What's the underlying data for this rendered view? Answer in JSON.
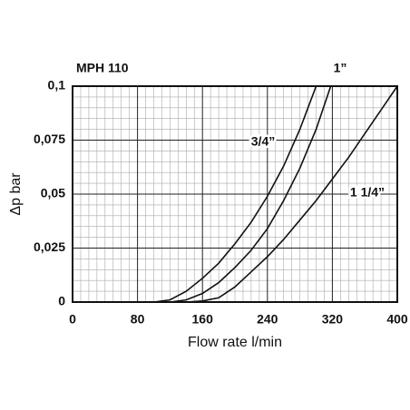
{
  "chart_data": {
    "type": "line",
    "title": "MPH 110",
    "xlabel": "Flow rate l/min",
    "ylabel": "Δp bar",
    "xlim": [
      0,
      400
    ],
    "xticks": [
      0,
      80,
      160,
      240,
      320,
      400
    ],
    "ylim": [
      0,
      0.1
    ],
    "yticks": [
      0,
      {
        "value": 0.025,
        "label": "0,025"
      },
      {
        "value": 0.05,
        "label": "0,05"
      },
      {
        "value": 0.075,
        "label": "0,075"
      },
      {
        "value": 0.1,
        "label": "0,1"
      }
    ],
    "grid": true,
    "minor_grid": [
      8,
      5
    ],
    "series": [
      {
        "name": "3/4”",
        "color": "#111111",
        "x": [
          0,
          100,
          120,
          140,
          160,
          180,
          200,
          220,
          240,
          260,
          280,
          300
        ],
        "values": [
          0,
          0,
          0.001,
          0.005,
          0.011,
          0.018,
          0.027,
          0.037,
          0.049,
          0.063,
          0.08,
          0.1
        ]
      },
      {
        "name": "1”",
        "color": "#111111",
        "x": [
          0,
          120,
          140,
          160,
          180,
          200,
          220,
          240,
          260,
          280,
          300,
          318
        ],
        "values": [
          0,
          0,
          0.001,
          0.004,
          0.009,
          0.016,
          0.024,
          0.034,
          0.047,
          0.062,
          0.08,
          0.1
        ]
      },
      {
        "name": "1 1/4”",
        "color": "#111111",
        "x": [
          0,
          140,
          160,
          180,
          200,
          220,
          240,
          260,
          280,
          300,
          320,
          340,
          360,
          380,
          400
        ],
        "values": [
          0,
          0,
          0.0005,
          0.002,
          0.007,
          0.014,
          0.021,
          0.029,
          0.038,
          0.047,
          0.057,
          0.067,
          0.078,
          0.089,
          0.1
        ]
      }
    ]
  }
}
